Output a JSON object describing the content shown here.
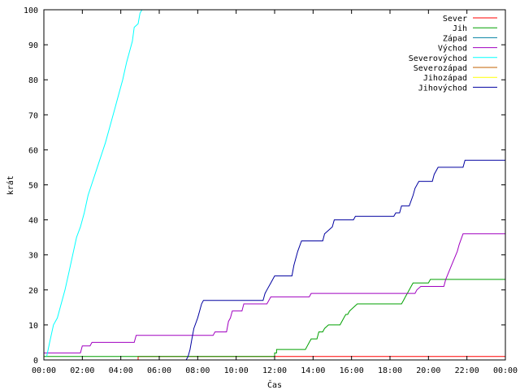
{
  "chart_data": {
    "type": "line",
    "xlabel": "Čas",
    "ylabel": "krát",
    "xlim": [
      0,
      24
    ],
    "ylim": [
      0,
      100
    ],
    "x_ticks": [
      "00:00",
      "02:00",
      "04:00",
      "06:00",
      "08:00",
      "10:00",
      "12:00",
      "14:00",
      "16:00",
      "18:00",
      "20:00",
      "22:00",
      "00:00"
    ],
    "y_ticks": [
      0,
      10,
      20,
      30,
      40,
      50,
      60,
      70,
      80,
      90,
      100
    ],
    "grid": false,
    "legend_position": "top-right",
    "x_unit": "hours since 00:00",
    "series": [
      {
        "name": "Sever",
        "color": "#ff0000",
        "points": [
          [
            0,
            0
          ],
          [
            4.9,
            0
          ],
          [
            4.9,
            1
          ],
          [
            24,
            1
          ]
        ]
      },
      {
        "name": "Jih",
        "color": "#00a000",
        "points": [
          [
            0,
            1
          ],
          [
            12.0,
            1
          ],
          [
            12.0,
            2
          ],
          [
            12.1,
            2
          ],
          [
            12.1,
            3
          ],
          [
            13.6,
            3
          ],
          [
            13.7,
            4
          ],
          [
            13.8,
            5
          ],
          [
            13.9,
            6
          ],
          [
            14.2,
            6
          ],
          [
            14.3,
            8
          ],
          [
            14.5,
            8
          ],
          [
            14.6,
            9
          ],
          [
            14.8,
            10
          ],
          [
            15.4,
            10
          ],
          [
            15.5,
            11
          ],
          [
            15.6,
            12
          ],
          [
            15.7,
            13
          ],
          [
            15.8,
            13
          ],
          [
            15.9,
            14
          ],
          [
            16.1,
            15
          ],
          [
            16.3,
            16
          ],
          [
            18.6,
            16
          ],
          [
            18.7,
            17
          ],
          [
            18.8,
            18
          ],
          [
            19.0,
            20
          ],
          [
            19.1,
            21
          ],
          [
            19.2,
            22
          ],
          [
            20.0,
            22
          ],
          [
            20.1,
            23
          ],
          [
            24,
            23
          ]
        ]
      },
      {
        "name": "Západ",
        "color": "#0080a0",
        "points": [
          [
            0,
            0
          ],
          [
            24,
            0
          ]
        ]
      },
      {
        "name": "Východ",
        "color": "#a000c0",
        "points": [
          [
            0,
            2
          ],
          [
            1.9,
            2
          ],
          [
            2.0,
            4
          ],
          [
            2.4,
            4
          ],
          [
            2.5,
            5
          ],
          [
            4.7,
            5
          ],
          [
            4.8,
            7
          ],
          [
            8.8,
            7
          ],
          [
            8.9,
            8
          ],
          [
            9.5,
            8
          ],
          [
            9.6,
            11
          ],
          [
            9.7,
            12
          ],
          [
            9.8,
            14
          ],
          [
            10.3,
            14
          ],
          [
            10.4,
            16
          ],
          [
            11.6,
            16
          ],
          [
            11.7,
            17
          ],
          [
            11.8,
            18
          ],
          [
            13.8,
            18
          ],
          [
            13.9,
            19
          ],
          [
            19.3,
            19
          ],
          [
            19.4,
            20
          ],
          [
            19.6,
            21
          ],
          [
            20.8,
            21
          ],
          [
            20.9,
            23
          ],
          [
            21.2,
            27
          ],
          [
            21.5,
            31
          ],
          [
            21.6,
            33
          ],
          [
            21.8,
            36
          ],
          [
            24,
            36
          ]
        ]
      },
      {
        "name": "Severovýchod",
        "color": "#00ffff",
        "points": [
          [
            0.15,
            1
          ],
          [
            0.3,
            5
          ],
          [
            0.5,
            10
          ],
          [
            0.7,
            12
          ],
          [
            0.9,
            16
          ],
          [
            1.1,
            20
          ],
          [
            1.3,
            25
          ],
          [
            1.5,
            30
          ],
          [
            1.7,
            35
          ],
          [
            1.9,
            38
          ],
          [
            2.1,
            42
          ],
          [
            2.3,
            47
          ],
          [
            2.6,
            52
          ],
          [
            2.9,
            57
          ],
          [
            3.2,
            62
          ],
          [
            3.4,
            66
          ],
          [
            3.7,
            72
          ],
          [
            3.9,
            76
          ],
          [
            4.1,
            80
          ],
          [
            4.3,
            85
          ],
          [
            4.6,
            91
          ],
          [
            4.7,
            95
          ],
          [
            4.9,
            96
          ],
          [
            5.0,
            99
          ],
          [
            5.1,
            100
          ]
        ]
      },
      {
        "name": "Severozápad",
        "color": "#c06000",
        "points": [
          [
            0,
            0
          ],
          [
            24,
            0
          ]
        ]
      },
      {
        "name": "Jihozápad",
        "color": "#ffff00",
        "points": [
          [
            0,
            0
          ],
          [
            24,
            0
          ]
        ]
      },
      {
        "name": "Jihovýchod",
        "color": "#0000a0",
        "points": [
          [
            7.4,
            0
          ],
          [
            7.5,
            1
          ],
          [
            7.6,
            3
          ],
          [
            7.7,
            6
          ],
          [
            7.8,
            9
          ],
          [
            8.0,
            12
          ],
          [
            8.1,
            14
          ],
          [
            8.2,
            16
          ],
          [
            8.3,
            17
          ],
          [
            11.4,
            17
          ],
          [
            11.5,
            19
          ],
          [
            11.6,
            20
          ],
          [
            11.8,
            22
          ],
          [
            12.0,
            24
          ],
          [
            12.9,
            24
          ],
          [
            13.0,
            27
          ],
          [
            13.2,
            31
          ],
          [
            13.4,
            34
          ],
          [
            14.5,
            34
          ],
          [
            14.6,
            36
          ],
          [
            14.8,
            37
          ],
          [
            15.0,
            38
          ],
          [
            15.1,
            40
          ],
          [
            16.1,
            40
          ],
          [
            16.2,
            41
          ],
          [
            18.2,
            41
          ],
          [
            18.3,
            42
          ],
          [
            18.5,
            42
          ],
          [
            18.6,
            44
          ],
          [
            19.0,
            44
          ],
          [
            19.2,
            47
          ],
          [
            19.3,
            49
          ],
          [
            19.5,
            51
          ],
          [
            20.2,
            51
          ],
          [
            20.3,
            53
          ],
          [
            20.5,
            55
          ],
          [
            21.8,
            55
          ],
          [
            21.9,
            57
          ],
          [
            24,
            57
          ]
        ]
      }
    ]
  }
}
